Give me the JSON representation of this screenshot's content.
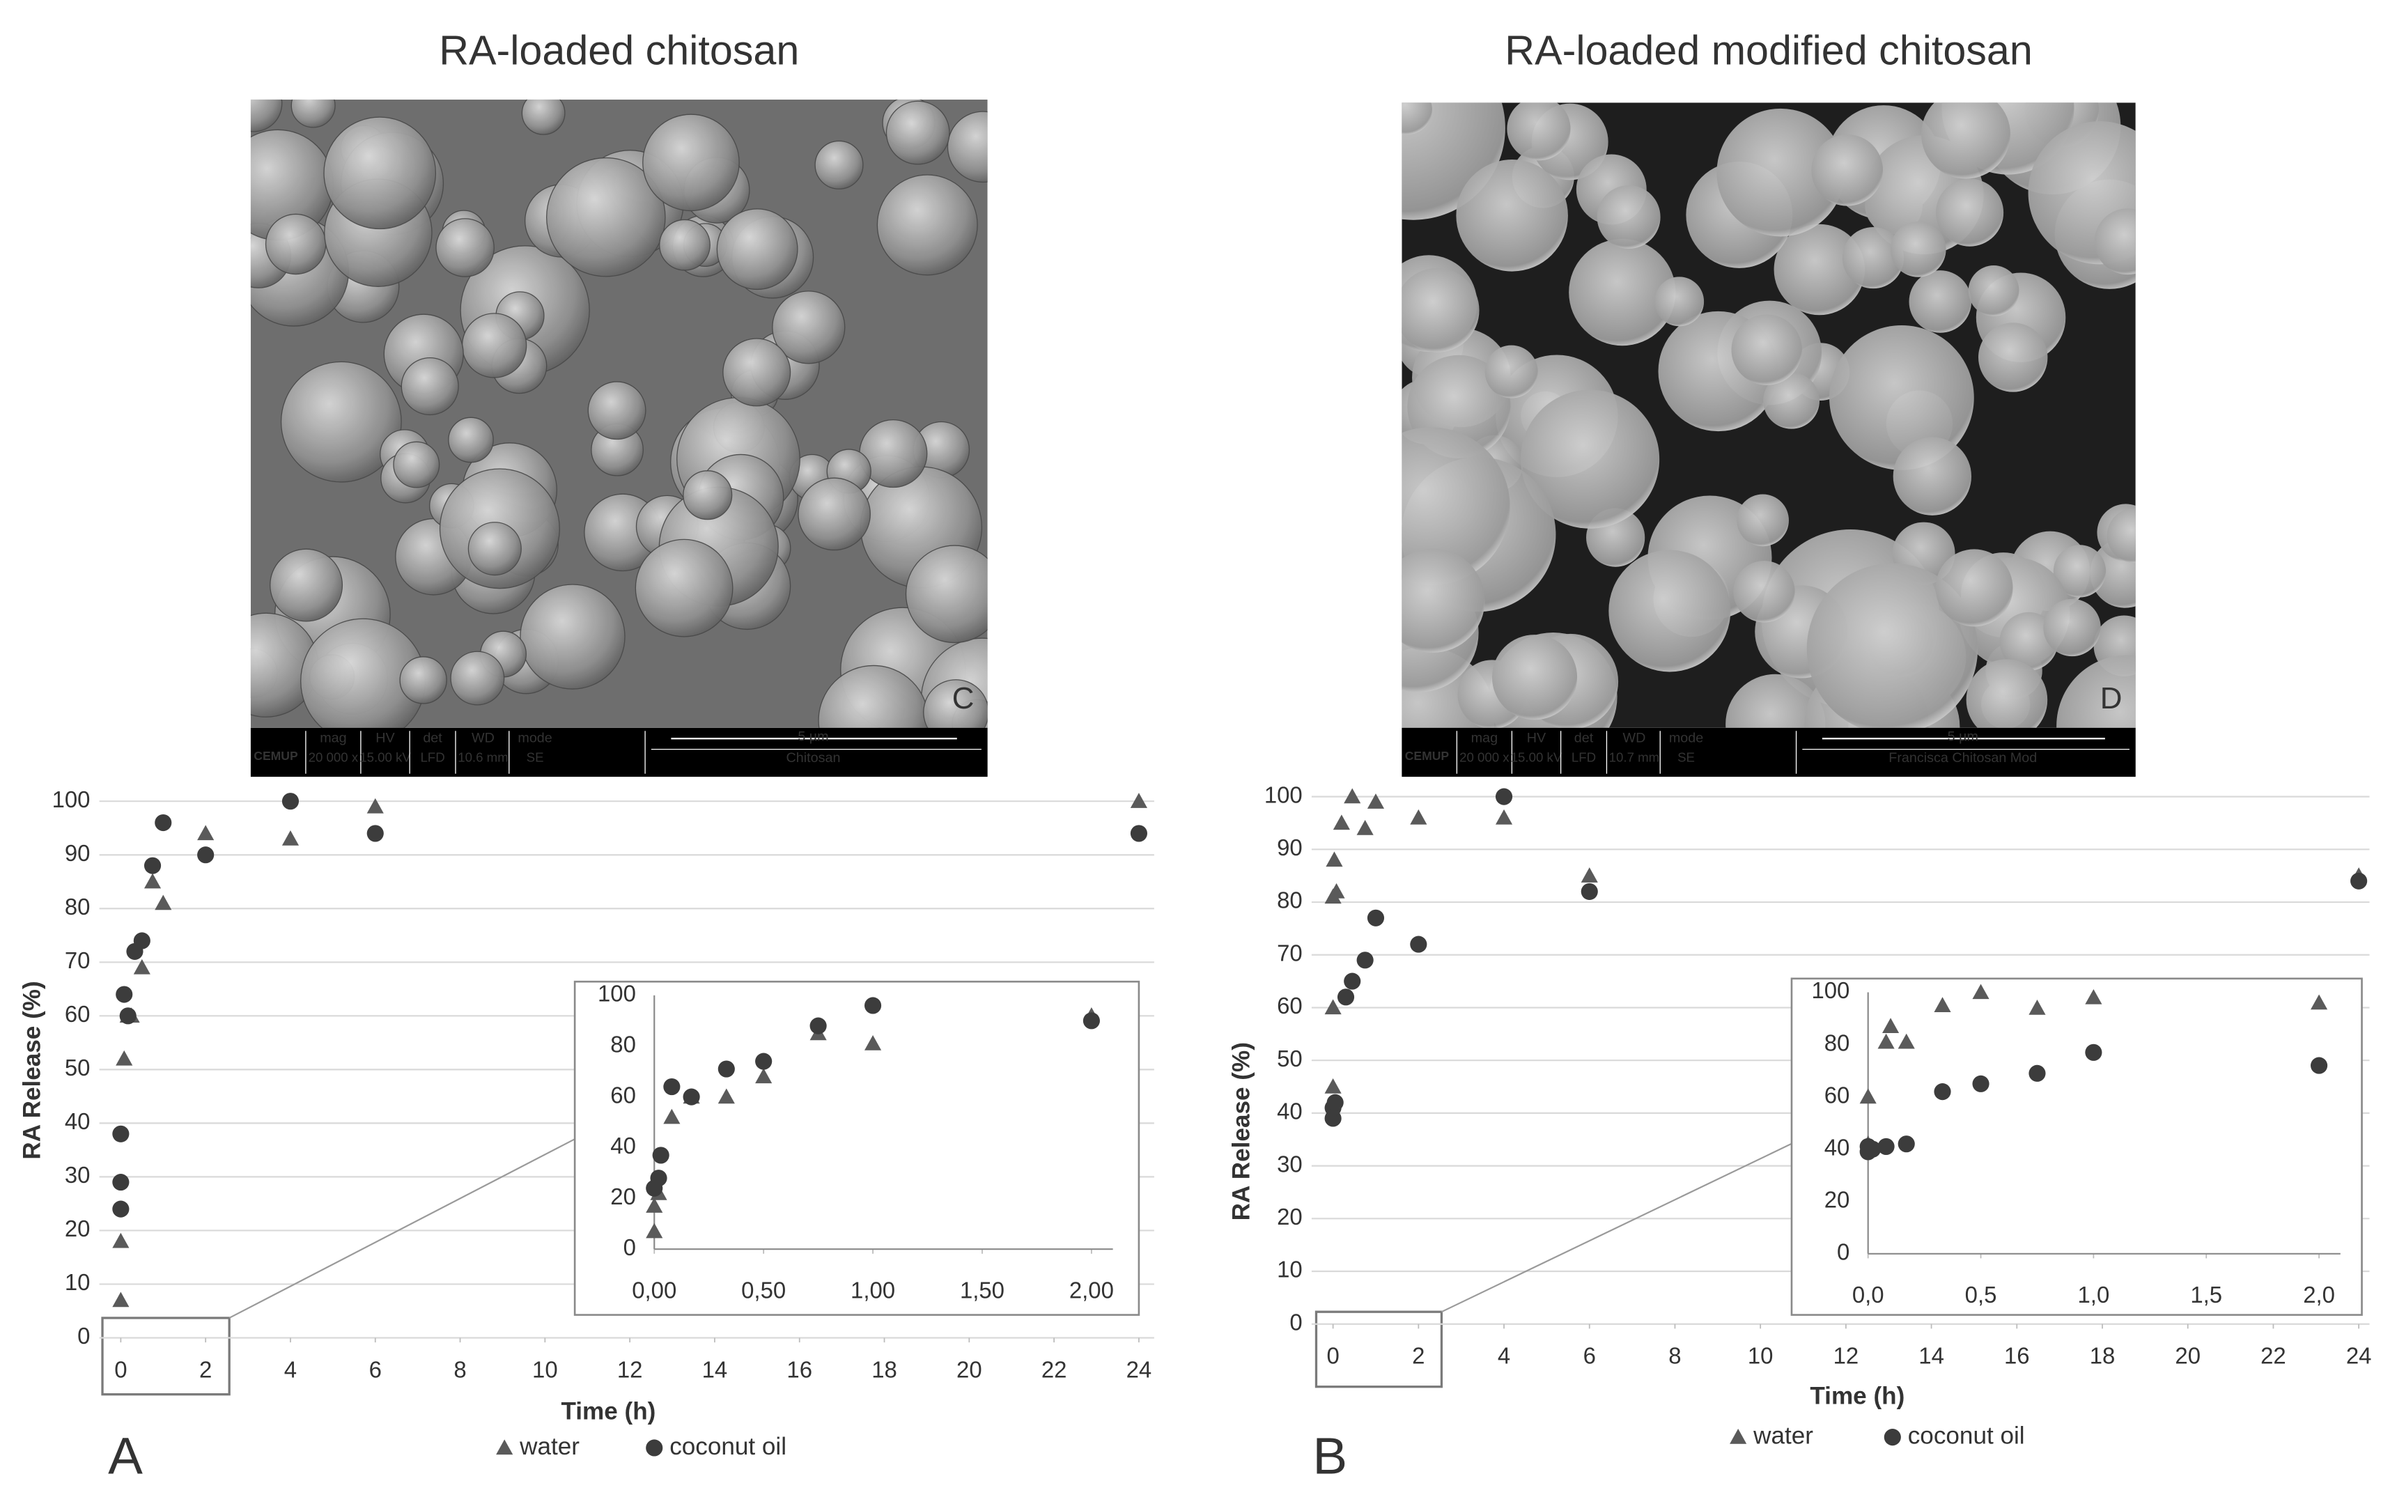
{
  "panels": [
    {
      "title": "RA-loaded chitosan",
      "letter": "A",
      "image": {
        "letter": "C",
        "org": "CEMUP",
        "fields": [
          "mag",
          "HV",
          "det",
          "WD",
          "mode"
        ],
        "settings": [
          "20 000 x",
          "15.00 kV",
          "LFD",
          "10.6 mm",
          "SE"
        ],
        "scale": "5 µm",
        "sample": "Chitosan"
      }
    },
    {
      "title": "RA-loaded modified chitosan",
      "letter": "B",
      "image": {
        "letter": "D",
        "org": "CEMUP",
        "fields": [
          "mag",
          "HV",
          "det",
          "WD",
          "mode"
        ],
        "settings": [
          "20 000 x",
          "15.00 kV",
          "LFD",
          "10.7 mm",
          "SE"
        ],
        "scale": "5 µm",
        "sample": "Francisca Chitosan Mod"
      }
    }
  ],
  "chart_data": [
    {
      "type": "scatter",
      "x_label": "Time (h)",
      "y_label": "RA Release (%)",
      "xlim": [
        0,
        24
      ],
      "xticks": [
        0,
        2,
        4,
        6,
        8,
        10,
        12,
        14,
        16,
        18,
        20,
        22,
        24
      ],
      "ylim": [
        0,
        100
      ],
      "yticks": [
        0,
        10,
        20,
        30,
        40,
        50,
        60,
        70,
        80,
        90,
        100
      ],
      "grid": true,
      "legend": "bottom",
      "series": [
        {
          "name": "water",
          "marker": "triangle",
          "color": "#5a5a5a",
          "x": [
            0,
            0,
            0.08,
            0.17,
            0.25,
            0.5,
            0.75,
            1,
            2,
            4,
            6,
            24
          ],
          "values": [
            7,
            18,
            52,
            60,
            60,
            69,
            85,
            81,
            94,
            93,
            99,
            100
          ]
        },
        {
          "name": "coconut oil",
          "marker": "circle",
          "color": "#3c3c3c",
          "x": [
            0,
            0,
            0,
            0.08,
            0.17,
            0.33,
            0.5,
            0.75,
            1,
            2,
            4,
            6,
            24
          ],
          "values": [
            24,
            29,
            38,
            64,
            60,
            72,
            74,
            88,
            96,
            90,
            100,
            94,
            94
          ]
        }
      ]
    },
    {
      "type": "scatter",
      "xlim": [
        0,
        2
      ],
      "xticks": [
        {
          "value": 0,
          "label": "0,00"
        },
        {
          "value": 0.5,
          "label": "0,50"
        },
        {
          "value": 1,
          "label": "1,00"
        },
        {
          "value": 1.5,
          "label": "1,50"
        },
        {
          "value": 2,
          "label": "2,00"
        }
      ],
      "ylim": [
        0,
        100
      ],
      "yticks": [
        0,
        20,
        40,
        60,
        80,
        100
      ],
      "grid": false,
      "series": [
        {
          "marker": "triangle",
          "color": "#5a5a5a",
          "x": [
            0,
            0,
            0.02,
            0.08,
            0.17,
            0.33,
            0.5,
            0.75,
            1,
            2
          ],
          "values": [
            7,
            17,
            22,
            52,
            60,
            60,
            68,
            85,
            81,
            92
          ]
        },
        {
          "marker": "circle",
          "color": "#3c3c3c",
          "x": [
            0,
            0.02,
            0.03,
            0.08,
            0.17,
            0.33,
            0.5,
            0.75,
            1,
            2
          ],
          "values": [
            24,
            28,
            37,
            64,
            60,
            71,
            74,
            88,
            96,
            90
          ]
        }
      ]
    },
    {
      "type": "scatter",
      "x_label": "Time (h)",
      "y_label": "RA Release (%)",
      "xlim": [
        0,
        24
      ],
      "xticks": [
        0,
        2,
        4,
        6,
        8,
        10,
        12,
        14,
        16,
        18,
        20,
        22,
        24
      ],
      "ylim": [
        0,
        100
      ],
      "yticks": [
        0,
        10,
        20,
        30,
        40,
        50,
        60,
        70,
        80,
        90,
        100
      ],
      "grid": true,
      "legend": "bottom",
      "series": [
        {
          "name": "water",
          "marker": "triangle",
          "color": "#5a5a5a",
          "x": [
            0,
            0,
            0,
            0.03,
            0.08,
            0.2,
            0.45,
            0.75,
            1,
            2,
            4,
            6,
            24
          ],
          "values": [
            45,
            60,
            81,
            88,
            82,
            95,
            100,
            94,
            99,
            96,
            96,
            85,
            85
          ]
        },
        {
          "name": "coconut oil",
          "marker": "circle",
          "color": "#3c3c3c",
          "x": [
            0,
            0,
            0.05,
            0.3,
            0.45,
            0.75,
            1,
            2,
            4,
            6,
            24
          ],
          "values": [
            39,
            41,
            42,
            62,
            65,
            69,
            77,
            72,
            100,
            82,
            84
          ]
        }
      ]
    },
    {
      "type": "scatter",
      "xlim": [
        0,
        2
      ],
      "xticks": [
        {
          "value": 0,
          "label": "0,0"
        },
        {
          "value": 0.5,
          "label": "0,5"
        },
        {
          "value": 1,
          "label": "1,0"
        },
        {
          "value": 1.5,
          "label": "1,5"
        },
        {
          "value": 2,
          "label": "2,0"
        }
      ],
      "ylim": [
        0,
        100
      ],
      "yticks": [
        0,
        20,
        40,
        60,
        80,
        100
      ],
      "grid": false,
      "series": [
        {
          "marker": "triangle",
          "color": "#5a5a5a",
          "x": [
            0,
            0,
            0.08,
            0.1,
            0.17,
            0.33,
            0.5,
            0.75,
            1,
            2
          ],
          "values": [
            42,
            60,
            81,
            87,
            81,
            95,
            100,
            94,
            98,
            96
          ]
        },
        {
          "marker": "circle",
          "color": "#3c3c3c",
          "x": [
            0,
            0,
            0.02,
            0.08,
            0.17,
            0.33,
            0.5,
            0.75,
            1,
            2
          ],
          "values": [
            39,
            41,
            40,
            41,
            42,
            62,
            65,
            69,
            77,
            72
          ]
        }
      ]
    }
  ]
}
